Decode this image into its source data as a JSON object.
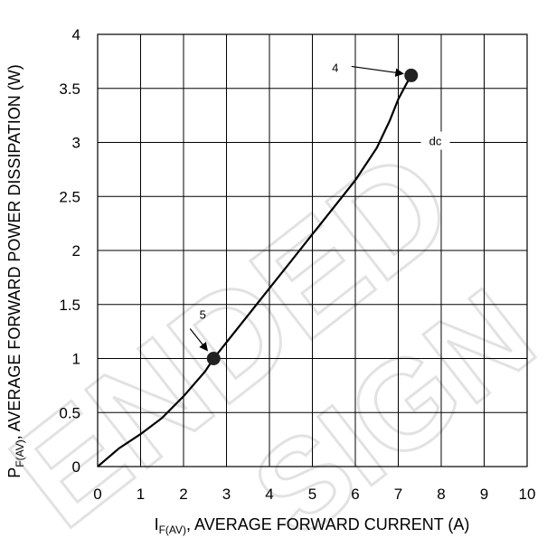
{
  "chart_data": {
    "type": "line",
    "title": "",
    "xlabel": {
      "main": "I",
      "sub": "F(AV)",
      "rest": ", AVERAGE FORWARD CURRENT (A)"
    },
    "ylabel": {
      "main": "P",
      "sub": "F(AV)",
      "rest": ", AVERAGE FORWARD POWER DISSIPATION (W)"
    },
    "xlim": [
      0,
      10
    ],
    "ylim": [
      0,
      4
    ],
    "x_ticks": [
      "0",
      "1",
      "2",
      "3",
      "4",
      "5",
      "6",
      "7",
      "8",
      "9",
      "10"
    ],
    "y_ticks": [
      "0",
      "0.5",
      "1",
      "1.5",
      "2",
      "2.5",
      "3",
      "3.5",
      "4"
    ],
    "grid": true,
    "series": [
      {
        "name": "dc",
        "x": [
          0,
          0.5,
          1.0,
          1.5,
          2.0,
          2.5,
          2.7,
          3.0,
          3.5,
          4.0,
          4.5,
          5.0,
          5.5,
          6.0,
          6.5,
          6.8,
          7.0,
          7.2,
          7.3
        ],
        "y": [
          0,
          0.17,
          0.3,
          0.45,
          0.65,
          0.88,
          1.0,
          1.15,
          1.4,
          1.65,
          1.9,
          2.15,
          2.4,
          2.65,
          2.95,
          3.2,
          3.4,
          3.55,
          3.62
        ]
      }
    ],
    "markers": [
      {
        "label": "4",
        "x": 7.3,
        "y": 3.62
      },
      {
        "label": "5",
        "x": 2.7,
        "y": 1.0
      }
    ]
  },
  "watermark": {
    "line1": "ENDED",
    "line2": "SIGN"
  }
}
